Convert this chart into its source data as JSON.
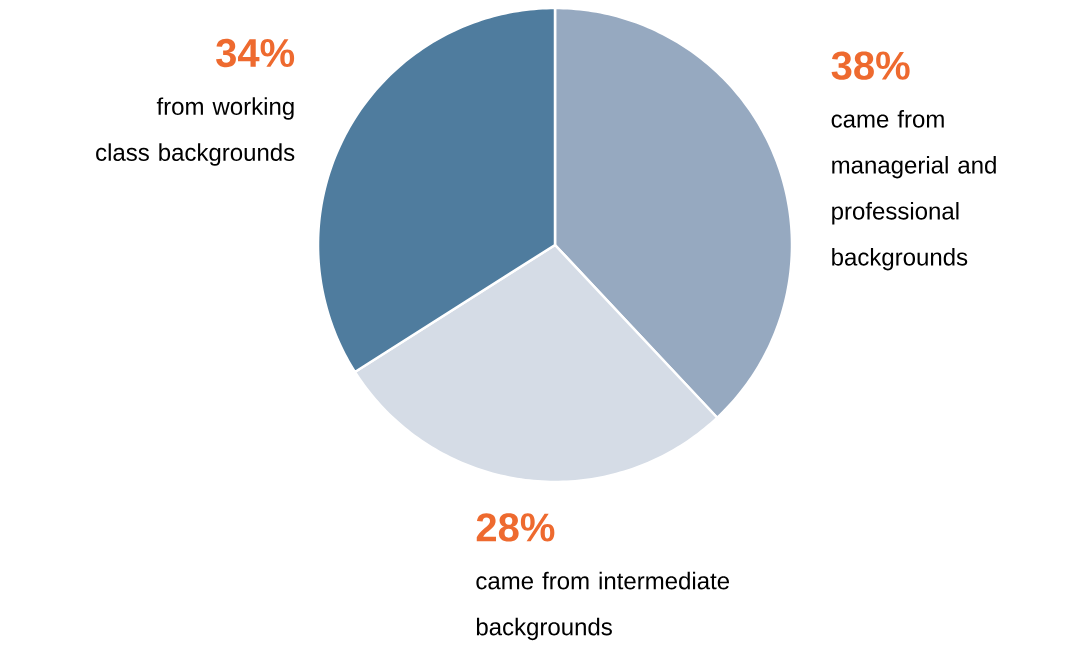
{
  "chart_data": {
    "type": "pie",
    "categories": [
      "came from managerial and professional backgrounds",
      "came from intermediate backgrounds",
      "from working class backgrounds"
    ],
    "values": [
      38,
      28,
      34
    ],
    "colors": [
      "#96a9c0",
      "#d5dce6",
      "#4f7c9e"
    ],
    "value_labels": [
      "38%",
      "28%",
      "34%"
    ]
  }
}
